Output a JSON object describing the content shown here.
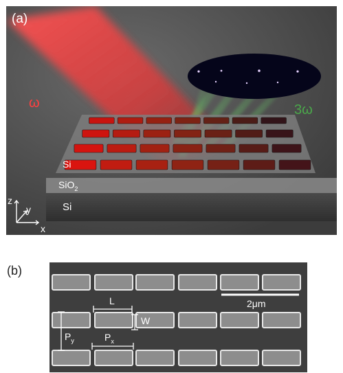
{
  "panel_a": {
    "label": "(a)",
    "omega": "ω",
    "three_omega": "3ω",
    "layer_top": "Si",
    "layer_mid": "SiO",
    "layer_mid_sub": "2",
    "layer_bottom": "Si",
    "axis_z": "z",
    "axis_y": "y",
    "axis_x": "x",
    "colors": {
      "fundamental": "#ff4040",
      "third_harmonic": "#4aa84a"
    }
  },
  "panel_b": {
    "label": "(b)",
    "scale_bar": "2μm",
    "dim_L": "L",
    "dim_W": "W",
    "dim_Py": "P",
    "dim_Py_sub": "y",
    "dim_Px": "P",
    "dim_Px_sub": "x"
  }
}
